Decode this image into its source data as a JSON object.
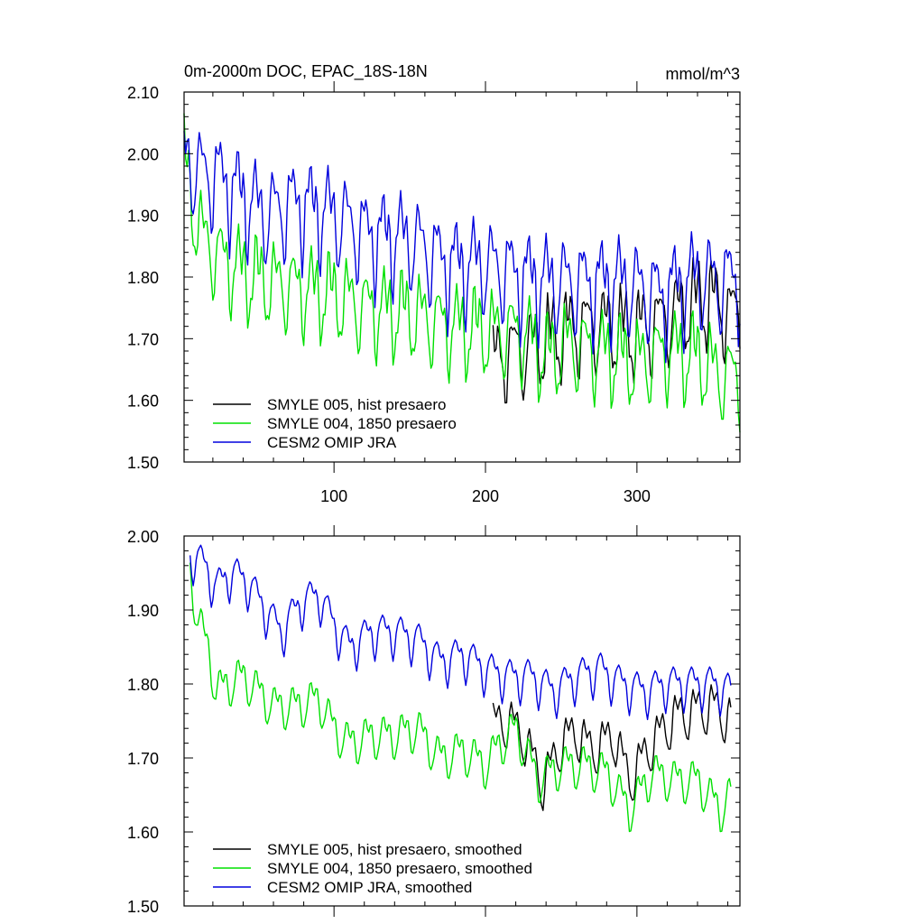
{
  "chart_data": [
    {
      "type": "line",
      "title": "0m-2000m DOC, EPAC_18S-18N",
      "units": "mmol/m^3",
      "xlim": [
        1,
        368
      ],
      "ylim": [
        1.5,
        2.1
      ],
      "x_ticks": [
        100,
        200,
        300
      ],
      "x_tick_labels": [
        "100",
        "200",
        "300"
      ],
      "y_ticks": [
        1.5,
        1.6,
        1.7,
        1.8,
        1.9,
        2.0,
        2.1
      ],
      "y_tick_labels": [
        "1.50",
        "1.60",
        "1.70",
        "1.80",
        "1.90",
        "2.00",
        "2.10"
      ],
      "legend_position": "bottom-left",
      "series": [
        {
          "name": "SMYLE 005, hist presaero",
          "color": "#000000",
          "x_start": 205,
          "x_end": 368,
          "anchors": [
            [
              205,
              1.66
            ],
            [
              215,
              1.68
            ],
            [
              225,
              1.68
            ],
            [
              235,
              1.69
            ],
            [
              250,
              1.71
            ],
            [
              265,
              1.72
            ],
            [
              280,
              1.72
            ],
            [
              295,
              1.71
            ],
            [
              310,
              1.72
            ],
            [
              325,
              1.74
            ],
            [
              340,
              1.76
            ],
            [
              352,
              1.76
            ],
            [
              360,
              1.74
            ],
            [
              368,
              1.74
            ]
          ],
          "amplitude": 0.055,
          "smooth_amplitude": 0.018
        },
        {
          "name": "SMYLE 004, 1850 presaero",
          "color": "#00e000",
          "x_start": 1,
          "x_end": 368,
          "anchors": [
            [
              1,
              2.0
            ],
            [
              6,
              1.92
            ],
            [
              14,
              1.86
            ],
            [
              25,
              1.83
            ],
            [
              45,
              1.8
            ],
            [
              60,
              1.79
            ],
            [
              80,
              1.78
            ],
            [
              100,
              1.77
            ],
            [
              120,
              1.75
            ],
            [
              150,
              1.74
            ],
            [
              175,
              1.72
            ],
            [
              205,
              1.71
            ],
            [
              225,
              1.71
            ],
            [
              240,
              1.67
            ],
            [
              255,
              1.69
            ],
            [
              275,
              1.68
            ],
            [
              300,
              1.66
            ],
            [
              320,
              1.68
            ],
            [
              340,
              1.67
            ],
            [
              355,
              1.64
            ],
            [
              368,
              1.64
            ]
          ],
          "amplitude": 0.055,
          "smooth_amplitude": 0.018
        },
        {
          "name": "CESM2 OMIP JRA",
          "color": "#0000dd",
          "x_start": 1,
          "x_end": 368,
          "anchors": [
            [
              1,
              2.0
            ],
            [
              10,
              1.97
            ],
            [
              25,
              1.96
            ],
            [
              40,
              1.93
            ],
            [
              55,
              1.9
            ],
            [
              75,
              1.92
            ],
            [
              100,
              1.9
            ],
            [
              120,
              1.87
            ],
            [
              150,
              1.86
            ],
            [
              175,
              1.82
            ],
            [
              200,
              1.82
            ],
            [
              225,
              1.8
            ],
            [
              245,
              1.79
            ],
            [
              265,
              1.79
            ],
            [
              290,
              1.79
            ],
            [
              315,
              1.77
            ],
            [
              340,
              1.8
            ],
            [
              355,
              1.79
            ],
            [
              368,
              1.8
            ]
          ],
          "amplitude": 0.06,
          "smooth_amplitude": 0.02
        }
      ]
    },
    {
      "type": "line",
      "title": "",
      "xlim": [
        1,
        368
      ],
      "ylim": [
        1.5,
        2.0
      ],
      "x_ticks": [
        100,
        200,
        300
      ],
      "y_ticks": [
        1.5,
        1.6,
        1.7,
        1.8,
        1.9,
        2.0
      ],
      "y_tick_labels": [
        "1.50",
        "1.60",
        "1.70",
        "1.80",
        "1.90",
        "2.00"
      ],
      "legend_position": "bottom-left",
      "series": [
        {
          "name": "SMYLE 005, hist presaero, smoothed",
          "color": "#000000",
          "x_start": 205,
          "x_end": 362,
          "anchors": [
            [
              205,
              1.745
            ],
            [
              215,
              1.75
            ],
            [
              225,
              1.73
            ],
            [
              238,
              1.665
            ],
            [
              250,
              1.72
            ],
            [
              260,
              1.735
            ],
            [
              270,
              1.71
            ],
            [
              285,
              1.73
            ],
            [
              295,
              1.67
            ],
            [
              310,
              1.72
            ],
            [
              325,
              1.755
            ],
            [
              340,
              1.765
            ],
            [
              350,
              1.77
            ],
            [
              362,
              1.75
            ]
          ],
          "amplitude": 0.035
        },
        {
          "name": "SMYLE 004, 1850 presaero, smoothed",
          "color": "#00e000",
          "x_start": 5,
          "x_end": 362,
          "anchors": [
            [
              5,
              1.95
            ],
            [
              10,
              1.89
            ],
            [
              18,
              1.84
            ],
            [
              22,
              1.79
            ],
            [
              30,
              1.8
            ],
            [
              40,
              1.81
            ],
            [
              50,
              1.79
            ],
            [
              60,
              1.77
            ],
            [
              75,
              1.77
            ],
            [
              90,
              1.78
            ],
            [
              100,
              1.74
            ],
            [
              110,
              1.72
            ],
            [
              125,
              1.73
            ],
            [
              140,
              1.73
            ],
            [
              155,
              1.74
            ],
            [
              170,
              1.7
            ],
            [
              185,
              1.71
            ],
            [
              200,
              1.69
            ],
            [
              210,
              1.72
            ],
            [
              220,
              1.74
            ],
            [
              235,
              1.67
            ],
            [
              250,
              1.69
            ],
            [
              265,
              1.69
            ],
            [
              280,
              1.68
            ],
            [
              295,
              1.63
            ],
            [
              310,
              1.68
            ],
            [
              325,
              1.67
            ],
            [
              340,
              1.67
            ],
            [
              355,
              1.63
            ],
            [
              362,
              1.65
            ]
          ],
          "amplitude": 0.03
        },
        {
          "name": "CESM2 OMIP JRA, smoothed",
          "color": "#0000dd",
          "x_start": 5,
          "x_end": 362,
          "anchors": [
            [
              5,
              1.975
            ],
            [
              15,
              1.96
            ],
            [
              22,
              1.93
            ],
            [
              32,
              1.95
            ],
            [
              42,
              1.94
            ],
            [
              55,
              1.9
            ],
            [
              65,
              1.87
            ],
            [
              78,
              1.91
            ],
            [
              90,
              1.92
            ],
            [
              100,
              1.88
            ],
            [
              110,
              1.85
            ],
            [
              125,
              1.87
            ],
            [
              140,
              1.87
            ],
            [
              155,
              1.86
            ],
            [
              170,
              1.83
            ],
            [
              185,
              1.84
            ],
            [
              200,
              1.82
            ],
            [
              215,
              1.81
            ],
            [
              230,
              1.81
            ],
            [
              245,
              1.79
            ],
            [
              260,
              1.81
            ],
            [
              275,
              1.82
            ],
            [
              290,
              1.8
            ],
            [
              305,
              1.79
            ],
            [
              320,
              1.8
            ],
            [
              335,
              1.8
            ],
            [
              350,
              1.8
            ],
            [
              362,
              1.79
            ]
          ],
          "amplitude": 0.03
        }
      ]
    }
  ]
}
